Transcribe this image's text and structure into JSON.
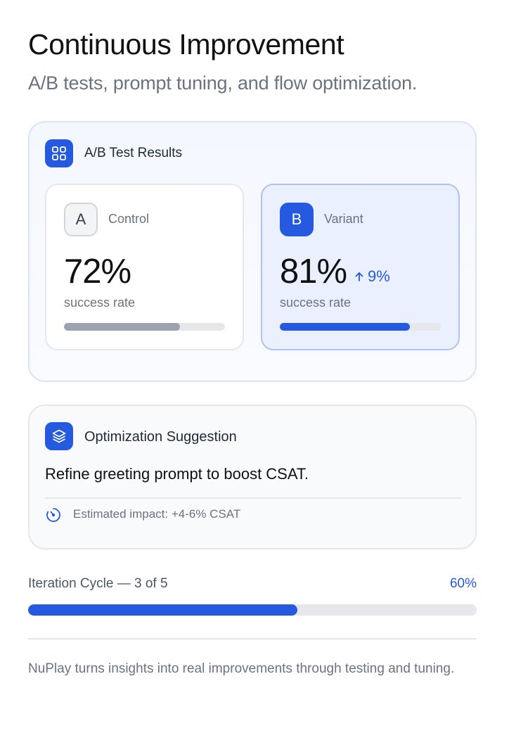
{
  "header": {
    "title": "Continuous Improvement",
    "subtitle": "A/B tests, prompt tuning, and flow optimization."
  },
  "ab_test": {
    "heading": "A/B Test Results",
    "header_icon": "grid-icon",
    "control": {
      "badge": "A",
      "name": "Control",
      "rate": "72%",
      "rate_label": "success rate",
      "bar_fraction": 0.72
    },
    "variant": {
      "badge": "B",
      "name": "Variant",
      "rate": "81%",
      "lift": "9%",
      "lift_icon": "arrow-up-icon",
      "rate_label": "success rate",
      "bar_fraction": 0.81
    }
  },
  "suggestion": {
    "icon": "layers-icon",
    "title": "Optimization Suggestion",
    "text": "Refine greeting prompt to boost CSAT.",
    "impact_icon": "gauge-icon",
    "impact": "Estimated impact: +4-6% CSAT"
  },
  "iteration": {
    "label": "Iteration Cycle — 3 of 5",
    "percent": "60%",
    "progress_fraction": 0.6
  },
  "footer": {
    "text": "NuPlay turns insights into real improvements through testing and tuning."
  },
  "colors": {
    "accent": "#2559e0",
    "muted_text": "#6b7280",
    "control_bar": "#9ca3af",
    "track": "#e5e7eb"
  }
}
